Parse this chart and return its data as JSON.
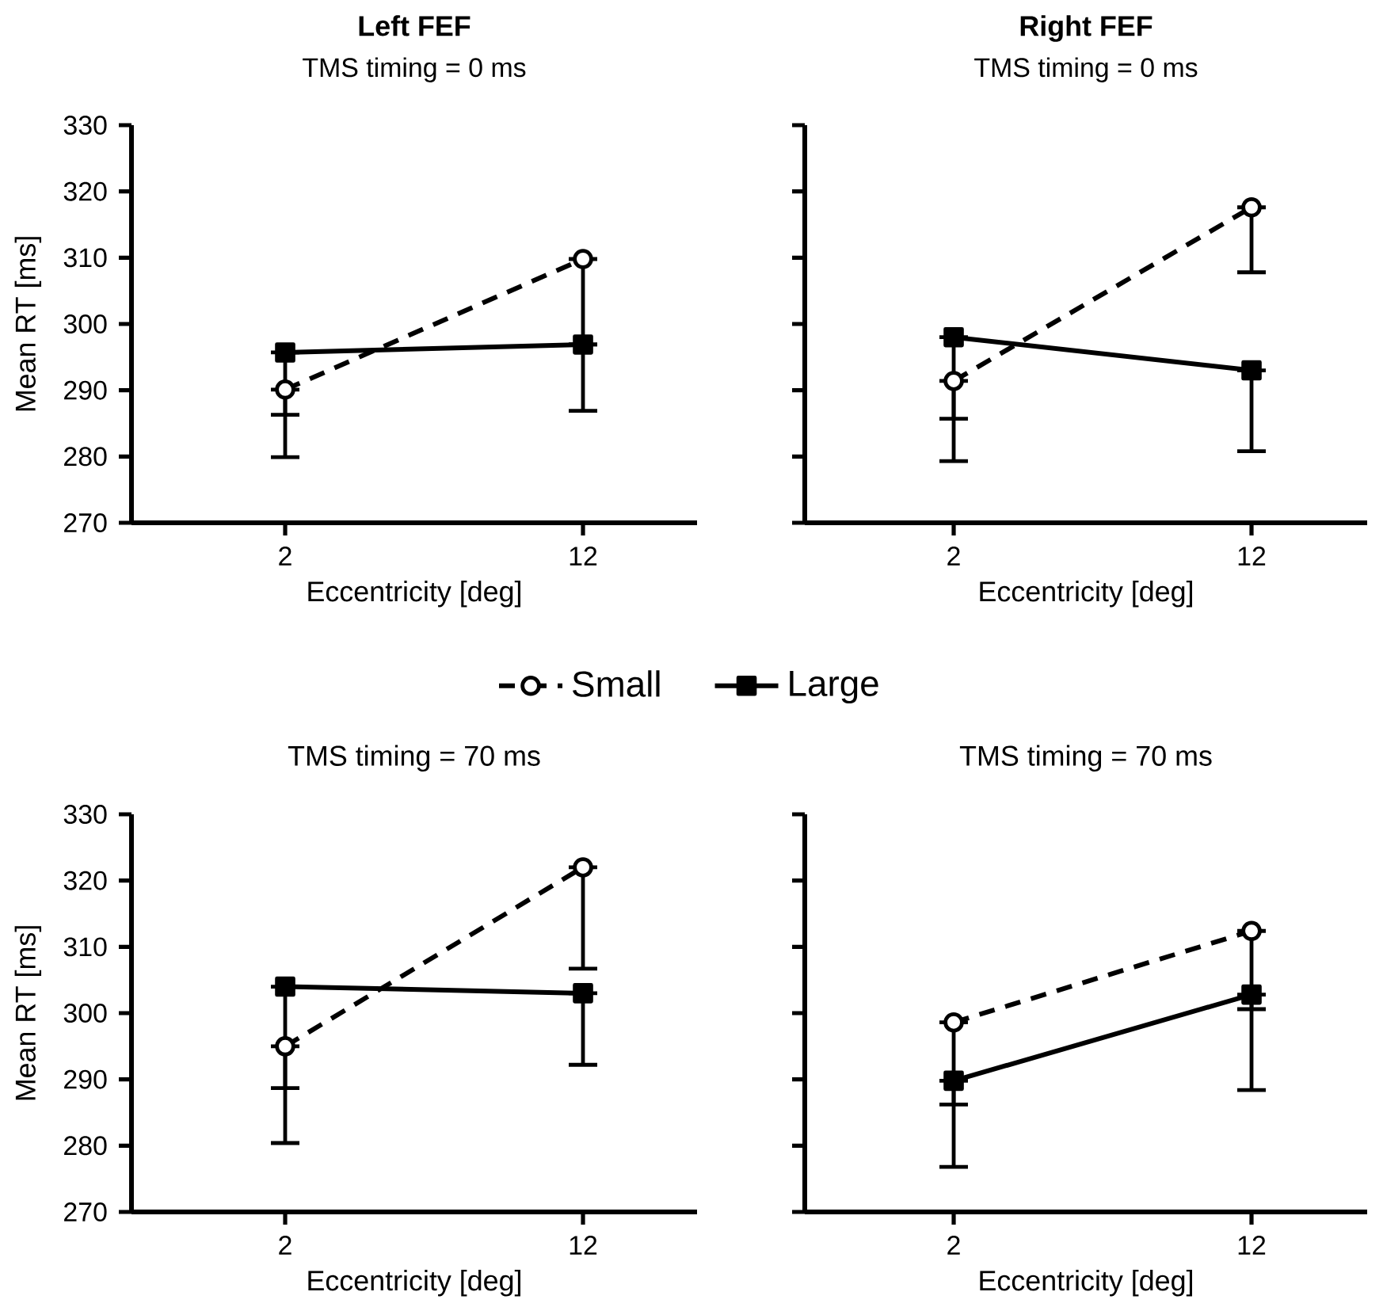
{
  "chart_data": [
    {
      "type": "line",
      "title": "Left FEF",
      "subtitle": "TMS timing = 0 ms",
      "xlabel": "Eccentricity [deg]",
      "ylabel": "Mean RT [ms]",
      "categories": [
        "2",
        "12"
      ],
      "ylim": [
        270,
        330
      ],
      "yticks": [
        270,
        280,
        290,
        300,
        310,
        320,
        330
      ],
      "legend": "bottom",
      "series": [
        {
          "name": "Small",
          "color": "#000000",
          "marker": "circle",
          "line_style": "dashed",
          "values": [
            290.1,
            309.8
          ],
          "errors": [
            [
              286.3,
              290.1
            ],
            [
              286.9,
              309.8
            ]
          ]
        },
        {
          "name": "Large",
          "color": "#000000",
          "marker": "square",
          "line_style": "solid",
          "values": [
            295.7,
            296.9
          ],
          "errors": [
            [
              279.9,
              295.7
            ],
            null
          ]
        }
      ]
    },
    {
      "type": "line",
      "title": "Right FEF",
      "subtitle": "TMS timing = 0 ms",
      "xlabel": "Eccentricity [deg]",
      "categories": [
        "2",
        "12"
      ],
      "ylim": [
        270,
        330
      ],
      "yticks": [
        270,
        280,
        290,
        300,
        310,
        320,
        330
      ],
      "tick_labels": "x",
      "series": [
        {
          "color": "#000000",
          "marker": "circle",
          "line_style": "dashed",
          "values": [
            291.4,
            317.6
          ],
          "errors": [
            [
              285.7,
              291.4
            ],
            [
              307.8,
              317.6
            ]
          ]
        },
        {
          "color": "#000000",
          "marker": "square",
          "line_style": "solid",
          "values": [
            298.0,
            293.0
          ],
          "errors": [
            [
              279.3,
              298.0
            ],
            [
              280.8,
              293.0
            ]
          ]
        }
      ]
    },
    {
      "type": "line",
      "title": "TMS timing = 70 ms",
      "xlabel": "Eccentricity [deg]",
      "ylabel": "Mean RT [ms]",
      "categories": [
        "2",
        "12"
      ],
      "ylim": [
        270,
        330
      ],
      "yticks": [
        270,
        280,
        290,
        300,
        310,
        320,
        330
      ],
      "series": [
        {
          "color": "#000000",
          "marker": "circle",
          "line_style": "dashed",
          "values": [
            295.0,
            322.0
          ],
          "errors": [
            [
              288.7,
              295.0
            ],
            [
              306.7,
              322.0
            ]
          ]
        },
        {
          "color": "#000000",
          "marker": "square",
          "line_style": "solid",
          "values": [
            304.0,
            303.0
          ],
          "errors": [
            [
              280.4,
              304.0
            ],
            [
              292.2,
              303.0
            ]
          ]
        }
      ]
    },
    {
      "type": "line",
      "title": "TMS timing = 70 ms",
      "xlabel": "Eccentricity [deg]",
      "categories": [
        "2",
        "12"
      ],
      "ylim": [
        270,
        330
      ],
      "yticks": [
        270,
        280,
        290,
        300,
        310,
        320,
        330
      ],
      "tick_labels": "x",
      "series": [
        {
          "color": "#000000",
          "marker": "circle",
          "line_style": "dashed",
          "values": [
            298.6,
            312.4
          ],
          "errors": [
            [
              286.2,
              298.6
            ],
            [
              300.6,
              312.4
            ]
          ]
        },
        {
          "color": "#000000",
          "marker": "square",
          "line_style": "solid",
          "values": [
            289.8,
            302.8
          ],
          "errors": [
            [
              276.8,
              289.8
            ],
            [
              288.4,
              302.8
            ]
          ]
        }
      ]
    }
  ]
}
